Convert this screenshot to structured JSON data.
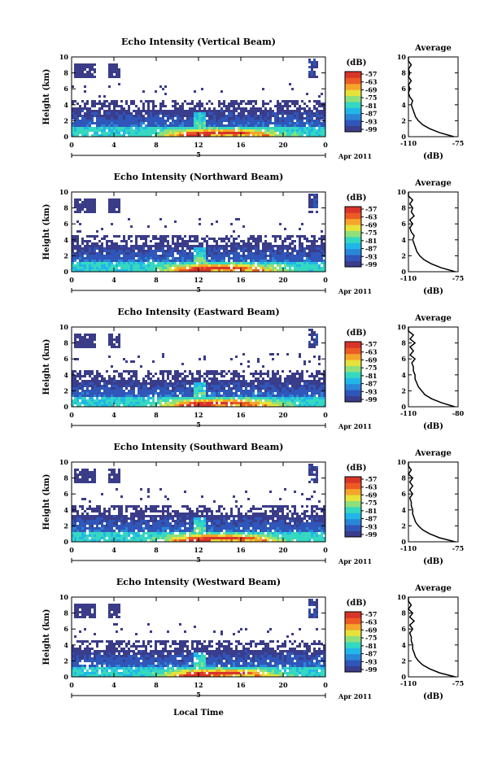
{
  "figure": {
    "xlabel_bottom": "Local Time",
    "date_label": "Apr 2011",
    "date_marker": "5",
    "colorbar_unit": "(dB)",
    "avg_title": "Average",
    "avg_xlabel": "(dB)"
  },
  "colorbar": {
    "ticks": [
      "-57",
      "-63",
      "-69",
      "-75",
      "-81",
      "-87",
      "-93",
      "-99"
    ],
    "colors": [
      "#3a3d8c",
      "#2f56b8",
      "#2a86d6",
      "#22b6e8",
      "#35d8c0",
      "#8fe07a",
      "#e6e23a",
      "#f4a52a",
      "#ec5b24",
      "#d9342a"
    ]
  },
  "chart_data": [
    {
      "type": "heatmap",
      "title": "Echo Intensity (Vertical Beam)",
      "ylabel": "Height (km)",
      "xlabel": "Local Time",
      "xlim": [
        0,
        24
      ],
      "ylim": [
        0,
        10
      ],
      "x_ticks": [
        "0",
        "4",
        "8",
        "12",
        "16",
        "20",
        "0"
      ],
      "y_ticks": [
        "0",
        "2",
        "4",
        "6",
        "8",
        "10"
      ],
      "value_unit": "dB",
      "value_range": [
        -99,
        -57
      ],
      "average_profile": {
        "title": "Average",
        "xlabel": "(dB)",
        "x_ticks": [
          "-110",
          "-75"
        ],
        "xlim": [
          -110,
          -75
        ],
        "height_km": [
          0,
          0.5,
          1,
          1.5,
          2,
          2.5,
          3,
          3.5,
          4,
          4.5,
          5,
          5.5,
          6,
          6.5,
          7,
          7.5,
          8,
          8.5,
          9,
          9.5,
          10
        ],
        "db": [
          -78,
          -88,
          -95,
          -100,
          -103,
          -105,
          -106,
          -107,
          -108,
          -107,
          -109,
          -110,
          -109,
          -110,
          -108,
          -110,
          -109,
          -110,
          -108,
          -110,
          -110
        ]
      }
    },
    {
      "type": "heatmap",
      "title": "Echo Intensity (Northward Beam)",
      "ylabel": "Height (km)",
      "xlabel": "Local Time",
      "xlim": [
        0,
        24
      ],
      "ylim": [
        0,
        10
      ],
      "x_ticks": [
        "0",
        "4",
        "8",
        "12",
        "16",
        "20",
        "0"
      ],
      "y_ticks": [
        "0",
        "2",
        "4",
        "6",
        "8",
        "10"
      ],
      "value_unit": "dB",
      "value_range": [
        -99,
        -57
      ],
      "average_profile": {
        "title": "Average",
        "xlabel": "(dB)",
        "x_ticks": [
          "-110",
          "-75"
        ],
        "xlim": [
          -110,
          -75
        ],
        "height_km": [
          0,
          0.5,
          1,
          1.5,
          2,
          2.5,
          3,
          3.5,
          4,
          4.5,
          5,
          5.5,
          6,
          6.5,
          7,
          7.5,
          8,
          8.5,
          9,
          9.5,
          10
        ],
        "db": [
          -77,
          -87,
          -94,
          -99,
          -102,
          -104,
          -105,
          -106,
          -107,
          -106,
          -108,
          -109,
          -107,
          -109,
          -106,
          -108,
          -107,
          -109,
          -107,
          -110,
          -110
        ]
      }
    },
    {
      "type": "heatmap",
      "title": "Echo Intensity (Eastward Beam)",
      "ylabel": "Height (km)",
      "xlabel": "Local Time",
      "xlim": [
        0,
        24
      ],
      "ylim": [
        0,
        10
      ],
      "x_ticks": [
        "0",
        "4",
        "8",
        "12",
        "16",
        "20",
        "0"
      ],
      "y_ticks": [
        "0",
        "2",
        "4",
        "6",
        "8",
        "10"
      ],
      "value_unit": "dB",
      "value_range": [
        -99,
        -57
      ],
      "average_profile": {
        "title": "Average",
        "xlabel": "(dB)",
        "x_ticks": [
          "-110",
          "-80"
        ],
        "xlim": [
          -110,
          -80
        ],
        "height_km": [
          0,
          0.5,
          1,
          1.5,
          2,
          2.5,
          3,
          3.5,
          4,
          4.5,
          5,
          5.5,
          6,
          6.5,
          7,
          7.5,
          8,
          8.5,
          9,
          9.5,
          10
        ],
        "db": [
          -82,
          -90,
          -96,
          -100,
          -102,
          -104,
          -105,
          -106,
          -106,
          -107,
          -107,
          -108,
          -106,
          -109,
          -107,
          -109,
          -106,
          -109,
          -107,
          -110,
          -110
        ]
      }
    },
    {
      "type": "heatmap",
      "title": "Echo Intensity (Southward Beam)",
      "ylabel": "Height (km)",
      "xlabel": "Local Time",
      "xlim": [
        0,
        24
      ],
      "ylim": [
        0,
        10
      ],
      "x_ticks": [
        "0",
        "4",
        "8",
        "12",
        "16",
        "20",
        "0"
      ],
      "y_ticks": [
        "0",
        "2",
        "4",
        "6",
        "8",
        "10"
      ],
      "value_unit": "dB",
      "value_range": [
        -99,
        -57
      ],
      "average_profile": {
        "title": "Average",
        "xlabel": "(dB)",
        "x_ticks": [
          "-110",
          "-75"
        ],
        "xlim": [
          -110,
          -75
        ],
        "height_km": [
          0,
          0.5,
          1,
          1.5,
          2,
          2.5,
          3,
          3.5,
          4,
          4.5,
          5,
          5.5,
          6,
          6.5,
          7,
          7.5,
          8,
          8.5,
          9,
          9.5,
          10
        ],
        "db": [
          -77,
          -88,
          -95,
          -100,
          -103,
          -105,
          -106,
          -107,
          -107,
          -108,
          -108,
          -109,
          -107,
          -109,
          -107,
          -109,
          -107,
          -110,
          -108,
          -110,
          -110
        ]
      }
    },
    {
      "type": "heatmap",
      "title": "Echo Intensity (Westward Beam)",
      "ylabel": "Height (km)",
      "xlabel": "Local Time",
      "xlim": [
        0,
        24
      ],
      "ylim": [
        0,
        10
      ],
      "x_ticks": [
        "0",
        "4",
        "8",
        "12",
        "16",
        "20",
        "0"
      ],
      "y_ticks": [
        "0",
        "2",
        "4",
        "6",
        "8",
        "10"
      ],
      "value_unit": "dB",
      "value_range": [
        -99,
        -57
      ],
      "average_profile": {
        "title": "Average",
        "xlabel": "(dB)",
        "x_ticks": [
          "-110",
          "-75"
        ],
        "xlim": [
          -110,
          -75
        ],
        "height_km": [
          0,
          0.5,
          1,
          1.5,
          2,
          2.5,
          3,
          3.5,
          4,
          4.5,
          5,
          5.5,
          6,
          6.5,
          7,
          7.5,
          8,
          8.5,
          9,
          9.5,
          10
        ],
        "db": [
          -77,
          -88,
          -95,
          -100,
          -103,
          -105,
          -106,
          -107,
          -107,
          -108,
          -108,
          -109,
          -107,
          -109,
          -106,
          -109,
          -107,
          -110,
          -108,
          -110,
          -110
        ]
      }
    }
  ]
}
